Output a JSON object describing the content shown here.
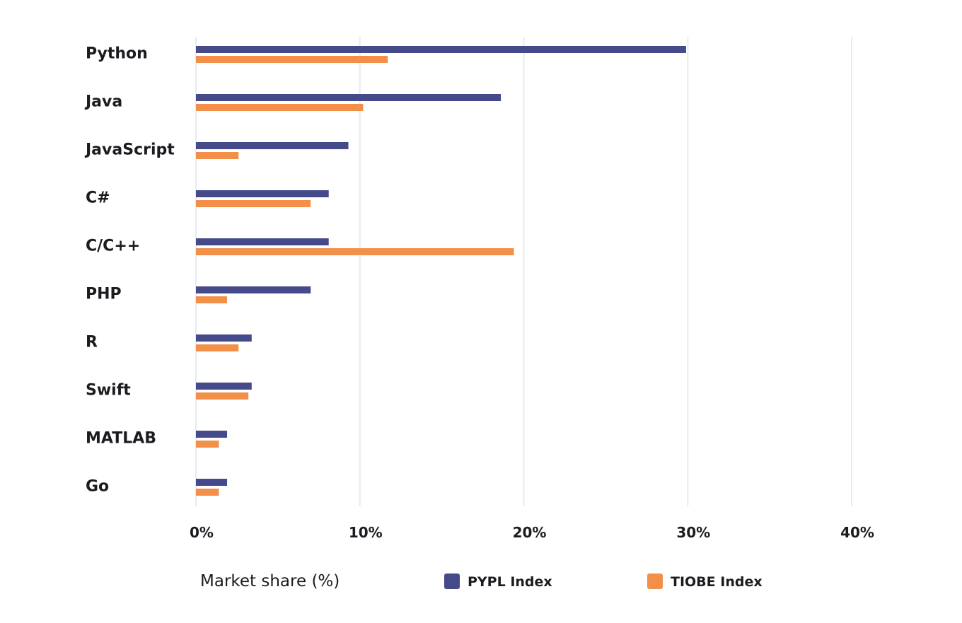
{
  "chart_data": {
    "type": "bar",
    "orientation": "horizontal",
    "categories": [
      "Python",
      "Java",
      "JavaScript",
      "C#",
      "C/C++",
      "PHP",
      "R",
      "Swift",
      "MATLAB",
      "Go"
    ],
    "series": [
      {
        "name": "PYPL Index",
        "color": "#444a8a",
        "values": [
          29.9,
          18.6,
          9.3,
          8.1,
          8.1,
          7.0,
          3.4,
          3.4,
          1.9,
          1.9
        ]
      },
      {
        "name": "TIOBE Index",
        "color": "#f2904a",
        "values": [
          11.7,
          10.2,
          2.6,
          7.0,
          19.4,
          1.9,
          2.6,
          3.2,
          1.4,
          1.4
        ]
      }
    ],
    "xlabel": "Market share (%)",
    "ylabel": "",
    "title": "",
    "xlim": [
      0,
      40
    ],
    "x_ticks": [
      0,
      10,
      20,
      30,
      40
    ],
    "x_tick_labels": [
      "0%",
      "10%",
      "20%",
      "30%",
      "40%"
    ],
    "grid": "vertical",
    "grid_color": "#e3edf3",
    "legend_position": "bottom"
  }
}
